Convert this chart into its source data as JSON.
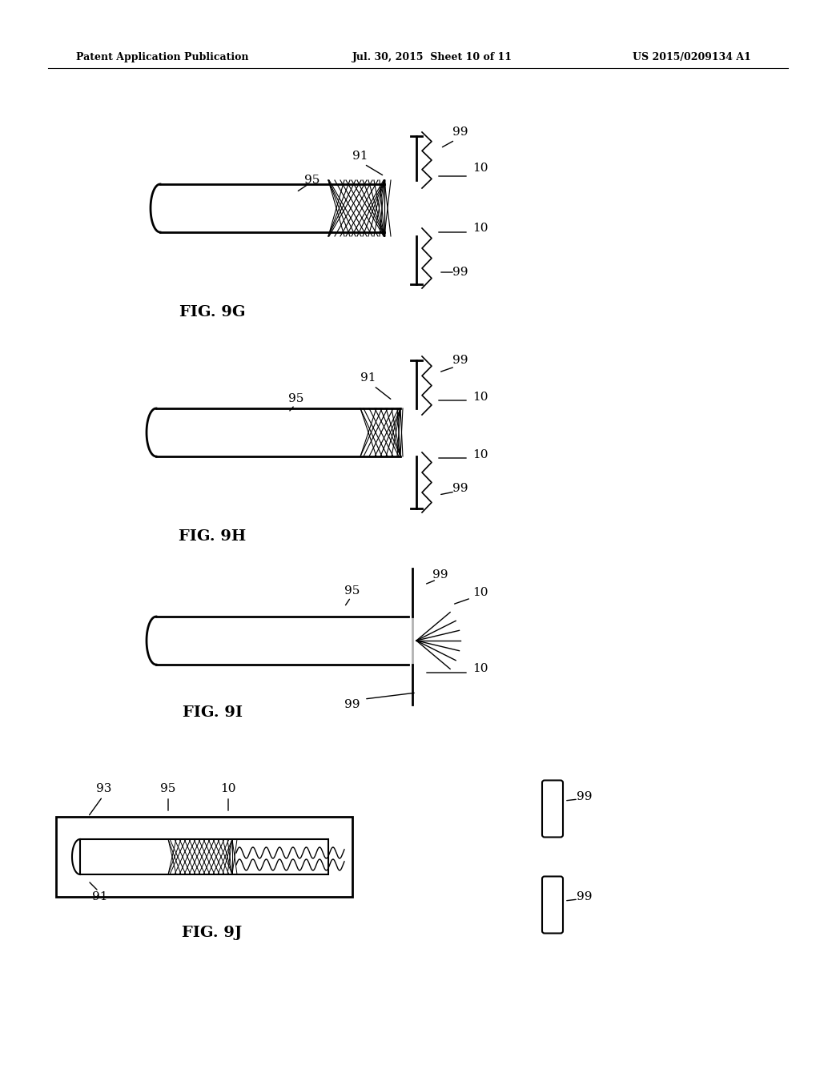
{
  "bg_color": "#ffffff",
  "text_color": "#000000",
  "header_left": "Patent Application Publication",
  "header_center": "Jul. 30, 2015  Sheet 10 of 11",
  "header_right": "US 2015/0209134 A1",
  "fig_labels": [
    "FIG. 9G",
    "FIG. 9H",
    "FIG. 9I",
    "FIG. 9J"
  ],
  "ref_nums": [
    "91",
    "95",
    "99",
    "10",
    "93"
  ]
}
